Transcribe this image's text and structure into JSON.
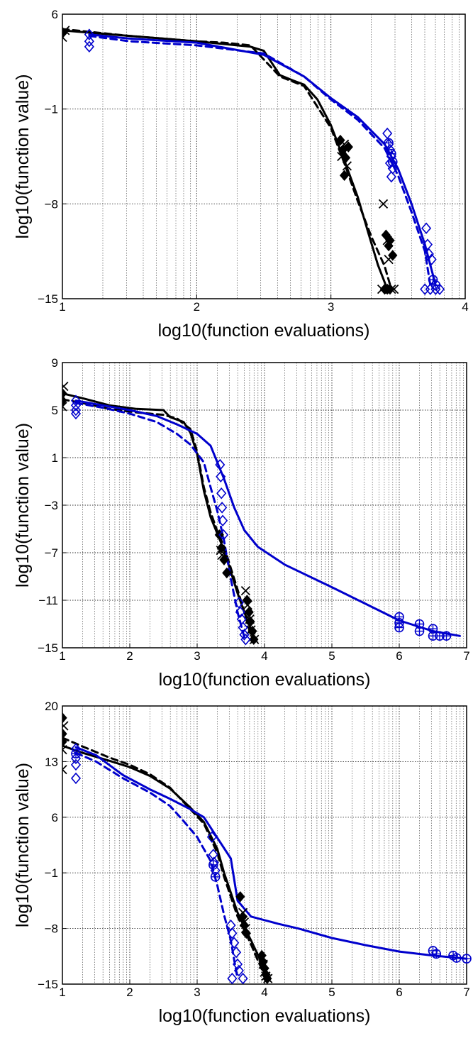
{
  "chart_data": [
    {
      "type": "line",
      "xlabel": "log10(function evaluations)",
      "ylabel": "log10(function value)",
      "xlim": [
        1,
        4
      ],
      "ylim": [
        -15,
        6
      ],
      "xticks": [
        1,
        2,
        3,
        4
      ],
      "yticks": [
        -15,
        -8,
        -1,
        6
      ],
      "grid": true,
      "series": [
        {
          "color": "#000000",
          "style": "solid",
          "marker": "none",
          "x": [
            1,
            1.5,
            2,
            2.4,
            2.5,
            2.62,
            2.72,
            2.8,
            2.9,
            3.0,
            3.1,
            3.2,
            3.28,
            3.35,
            3.42
          ],
          "y": [
            4.8,
            4.4,
            4.0,
            3.6,
            3.3,
            1.5,
            1.1,
            0.8,
            -0.3,
            -2.2,
            -4.8,
            -7.5,
            -10.2,
            -12.5,
            -14.3
          ]
        },
        {
          "color": "#000000",
          "style": "dashed",
          "marker": "none",
          "x": [
            1,
            1.5,
            2,
            2.2,
            2.4,
            2.62,
            2.8,
            3.0,
            3.1,
            3.2,
            3.3,
            3.4,
            3.45
          ],
          "y": [
            4.9,
            4.4,
            4.0,
            3.9,
            3.7,
            1.4,
            0.7,
            -2.4,
            -5.0,
            -7.8,
            -10.4,
            -12.6,
            -14.3
          ]
        },
        {
          "color": "#0000cc",
          "style": "solid",
          "marker": "none",
          "x": [
            1.2,
            1.5,
            2,
            2.5,
            2.8,
            3.0,
            3.2,
            3.4,
            3.5,
            3.6,
            3.7,
            3.78
          ],
          "y": [
            4.5,
            4.2,
            3.9,
            3.0,
            1.4,
            -0.2,
            -1.6,
            -3.6,
            -5.4,
            -8.0,
            -11.0,
            -14.0
          ]
        },
        {
          "color": "#0000cc",
          "style": "dashed",
          "marker": "none",
          "x": [
            1.2,
            1.5,
            2,
            2.5,
            2.8,
            3.0,
            3.2,
            3.4,
            3.5,
            3.6,
            3.7,
            3.74
          ],
          "y": [
            4.4,
            4.0,
            3.7,
            3.1,
            1.4,
            -0.3,
            -1.8,
            -3.9,
            -5.9,
            -8.6,
            -11.5,
            -14.0
          ]
        },
        {
          "color": "#000000",
          "style": "none",
          "marker": "x",
          "x": [
            1,
            1.02,
            3.08,
            3.1,
            3.12,
            3.39,
            3.42,
            3.43,
            3.45,
            3.38,
            3.47
          ],
          "y": [
            4.3,
            4.8,
            -4.5,
            -3.6,
            -5.2,
            -8.0,
            -10.7,
            -12.1,
            -14.3,
            -14.3,
            -14.3
          ]
        },
        {
          "color": "#000000",
          "style": "none",
          "marker": "diamond-filled",
          "x": [
            1.0,
            3.07,
            3.09,
            3.11,
            3.13,
            3.1,
            3.41,
            3.43,
            3.44,
            3.46,
            3.4,
            3.42,
            3.44
          ],
          "y": [
            4.6,
            -3.3,
            -4.0,
            -4.6,
            -3.8,
            -5.9,
            -10.3,
            -11.1,
            -10.7,
            -11.8,
            -14.3,
            -14.3,
            -14.3
          ]
        },
        {
          "color": "#0000cc",
          "style": "none",
          "marker": "diamond",
          "x": [
            1.2,
            1.2,
            1.2,
            3.42,
            3.43,
            3.44,
            3.45,
            3.44,
            3.46,
            3.45,
            3.71,
            3.72,
            3.73,
            3.75,
            3.7,
            3.74,
            3.78,
            3.81
          ],
          "y": [
            4.5,
            4.0,
            3.6,
            -2.8,
            -3.6,
            -4.0,
            -4.5,
            -5.0,
            -5.4,
            -6.0,
            -9.8,
            -11.0,
            -11.7,
            -12.1,
            -14.3,
            -14.3,
            -14.3,
            -14.3
          ]
        },
        {
          "color": "#0000cc",
          "style": "none",
          "marker": "circle-plus",
          "x": [
            3.43,
            3.45,
            3.46,
            3.76,
            3.78
          ],
          "y": [
            -3.5,
            -4.3,
            -4.9,
            -13.6,
            -14.0
          ]
        }
      ]
    },
    {
      "type": "line",
      "xlabel": "log10(function evaluations)",
      "ylabel": "log10(function value)",
      "xlim": [
        1,
        7
      ],
      "ylim": [
        -15,
        9
      ],
      "xticks": [
        1,
        2,
        3,
        4,
        5,
        6,
        7
      ],
      "yticks": [
        -15,
        -11,
        -7,
        -3,
        1,
        5,
        9
      ],
      "grid": true,
      "series": [
        {
          "color": "#000000",
          "style": "solid",
          "marker": "none",
          "x": [
            1,
            1.3,
            1.7,
            2.1,
            2.5,
            2.6,
            2.8,
            2.9,
            3.0,
            3.1,
            3.2,
            3.3,
            3.4,
            3.5,
            3.6,
            3.7,
            3.8,
            3.85
          ],
          "y": [
            6.4,
            6.0,
            5.4,
            5.1,
            5.0,
            4.4,
            4.0,
            3.1,
            1.3,
            -1.8,
            -4.0,
            -5.4,
            -6.8,
            -8.6,
            -10.4,
            -12.0,
            -13.5,
            -14.3
          ]
        },
        {
          "color": "#000000",
          "style": "dashed",
          "marker": "none",
          "x": [
            1,
            1.3,
            1.7,
            2.1,
            2.5,
            2.7,
            2.9,
            3.0,
            3.1,
            3.2,
            3.3,
            3.4,
            3.5,
            3.6,
            3.7,
            3.8
          ],
          "y": [
            5.9,
            5.6,
            5.1,
            4.8,
            4.6,
            4.3,
            3.4,
            1.5,
            -1.5,
            -3.6,
            -5.2,
            -6.5,
            -8.3,
            -10.1,
            -12.0,
            -14.0
          ]
        },
        {
          "color": "#0000cc",
          "style": "solid",
          "marker": "none",
          "x": [
            1.2,
            1.6,
            2.0,
            2.4,
            2.7,
            3.0,
            3.2,
            3.4,
            3.55,
            3.7,
            3.9,
            4.3,
            5.0,
            5.5,
            6.0,
            6.5,
            6.9
          ],
          "y": [
            5.8,
            5.4,
            5.0,
            4.5,
            3.8,
            3.0,
            2.0,
            -0.8,
            -3.2,
            -5.1,
            -6.5,
            -8.0,
            -9.9,
            -11.3,
            -12.7,
            -13.6,
            -14.0
          ]
        },
        {
          "color": "#0000cc",
          "style": "dashed",
          "marker": "none",
          "x": [
            1.2,
            1.6,
            2.0,
            2.4,
            2.7,
            2.9,
            3.1,
            3.2,
            3.3,
            3.4,
            3.5,
            3.6,
            3.7
          ],
          "y": [
            5.6,
            5.2,
            4.7,
            4.0,
            3.0,
            2.1,
            0.6,
            -1.5,
            -3.5,
            -6.0,
            -9.2,
            -12.0,
            -14.1
          ]
        },
        {
          "color": "#000000",
          "style": "none",
          "marker": "x",
          "x": [
            1,
            1.02,
            3.35,
            3.37,
            3.72,
            3.75,
            3.78,
            3.8,
            3.85
          ],
          "y": [
            5.3,
            7.0,
            -6.8,
            -7.2,
            -10.2,
            -11.4,
            -12.6,
            -13.5,
            -14.3
          ]
        },
        {
          "color": "#000000",
          "style": "none",
          "marker": "diamond-filled",
          "x": [
            1.0,
            1.0,
            3.33,
            3.36,
            3.4,
            3.44,
            3.74,
            3.77,
            3.79,
            3.82,
            3.84
          ],
          "y": [
            5.8,
            6.4,
            -5.5,
            -6.6,
            -7.6,
            -8.7,
            -11.0,
            -12.0,
            -12.8,
            -13.6,
            -14.3
          ]
        },
        {
          "color": "#0000cc",
          "style": "none",
          "marker": "diamond",
          "x": [
            1.2,
            1.2,
            1.2,
            1.2,
            3.34,
            3.35,
            3.36,
            3.37,
            3.38,
            3.39,
            3.62,
            3.64,
            3.66,
            3.68,
            3.7,
            3.72
          ],
          "y": [
            5.8,
            5.4,
            5.0,
            4.7,
            0.4,
            -0.6,
            -2.0,
            -3.2,
            -4.3,
            -5.5,
            -11.2,
            -12.0,
            -12.6,
            -13.3,
            -13.9,
            -14.3
          ]
        },
        {
          "color": "#0000cc",
          "style": "none",
          "marker": "circle-plus",
          "x": [
            6.0,
            6.0,
            6.0,
            6.3,
            6.3,
            6.5,
            6.5,
            6.6,
            6.7
          ],
          "y": [
            -12.4,
            -12.9,
            -13.3,
            -13.0,
            -13.6,
            -13.4,
            -14.0,
            -14.0,
            -14.0
          ]
        }
      ]
    },
    {
      "type": "line",
      "xlabel": "log10(function evaluations)",
      "ylabel": "log10(function value)",
      "xlim": [
        1,
        7
      ],
      "ylim": [
        -15,
        20
      ],
      "xticks": [
        1,
        2,
        3,
        4,
        5,
        6,
        7
      ],
      "yticks": [
        -15,
        -8,
        -1,
        6,
        13,
        20
      ],
      "grid": true,
      "series": [
        {
          "color": "#000000",
          "style": "solid",
          "marker": "none",
          "x": [
            1,
            1.3,
            1.7,
            2.0,
            2.3,
            2.6,
            2.9,
            3.1,
            3.3,
            3.4,
            3.5,
            3.6,
            3.7,
            3.8,
            3.9,
            4.0,
            4.05
          ],
          "y": [
            15.0,
            14.1,
            13.1,
            12.3,
            11.2,
            9.6,
            7.2,
            5.4,
            2.0,
            -1.0,
            -3.5,
            -6.0,
            -7.8,
            -9.5,
            -11.3,
            -13.2,
            -14.3
          ]
        },
        {
          "color": "#000000",
          "style": "dashed",
          "marker": "none",
          "x": [
            1,
            1.3,
            1.7,
            2.0,
            2.3,
            2.6,
            2.9,
            3.1,
            3.3,
            3.4,
            3.5,
            3.6,
            3.7,
            3.8,
            3.9,
            4.0,
            4.05
          ],
          "y": [
            16.0,
            14.9,
            13.5,
            12.6,
            11.4,
            9.7,
            7.0,
            5.2,
            1.5,
            -1.5,
            -4.0,
            -6.5,
            -8.2,
            -10.0,
            -12.0,
            -13.8,
            -14.3
          ]
        },
        {
          "color": "#0000cc",
          "style": "solid",
          "marker": "none",
          "x": [
            1.2,
            1.5,
            1.9,
            2.3,
            2.6,
            2.9,
            3.1,
            3.3,
            3.5,
            3.6,
            3.8,
            4.2,
            4.5,
            5.0,
            5.5,
            6.0,
            6.5,
            7.0
          ],
          "y": [
            14.8,
            13.8,
            11.3,
            9.5,
            8.3,
            7.0,
            6.0,
            3.4,
            0.8,
            -4.5,
            -6.5,
            -7.4,
            -8.0,
            -9.2,
            -10.1,
            -10.9,
            -11.4,
            -11.8
          ]
        },
        {
          "color": "#0000cc",
          "style": "dashed",
          "marker": "none",
          "x": [
            1.2,
            1.5,
            1.9,
            2.3,
            2.6,
            2.8,
            3.0,
            3.2,
            3.3,
            3.4,
            3.5,
            3.55,
            3.6
          ],
          "y": [
            14.1,
            13.0,
            10.9,
            9.1,
            7.4,
            5.5,
            3.5,
            0.5,
            -2.6,
            -6.3,
            -9.5,
            -12.0,
            -14.3
          ]
        },
        {
          "color": "#000000",
          "style": "none",
          "marker": "x",
          "x": [
            1.0,
            1.0,
            1.02,
            3.68,
            3.7,
            3.72,
            3.98,
            4.0,
            4.02,
            4.05
          ],
          "y": [
            12.0,
            14.5,
            17.5,
            -6.0,
            -7.2,
            -8.0,
            -12.5,
            -13.5,
            -14.0,
            -14.3
          ]
        },
        {
          "color": "#000000",
          "style": "none",
          "marker": "diamond-filled",
          "x": [
            1.0,
            1.0,
            1.0,
            3.64,
            3.67,
            3.7,
            3.73,
            3.96,
            3.98,
            4.0,
            4.02,
            4.04
          ],
          "y": [
            15.5,
            16.5,
            18.5,
            -4.0,
            -6.6,
            -7.6,
            -8.6,
            -11.4,
            -12.2,
            -13.0,
            -13.8,
            -14.3
          ]
        },
        {
          "color": "#0000cc",
          "style": "none",
          "marker": "diamond",
          "x": [
            1.2,
            1.2,
            1.2,
            1.2,
            3.22,
            3.24,
            3.25,
            3.27,
            3.5,
            3.52,
            3.55,
            3.58,
            3.6,
            3.62,
            3.52,
            3.68
          ],
          "y": [
            14.6,
            13.4,
            12.6,
            10.9,
            3.5,
            1.3,
            0.3,
            -0.7,
            -7.6,
            -8.6,
            -9.8,
            -11.0,
            -12.5,
            -13.3,
            -14.3,
            -14.3
          ]
        },
        {
          "color": "#0000cc",
          "style": "none",
          "marker": "circle-plus",
          "x": [
            1.2,
            3.24,
            3.27,
            6.5,
            6.55,
            6.8,
            6.85,
            7.0
          ],
          "y": [
            14.0,
            0.0,
            -1.5,
            -10.8,
            -11.2,
            -11.4,
            -11.7,
            -11.8
          ]
        }
      ]
    }
  ]
}
